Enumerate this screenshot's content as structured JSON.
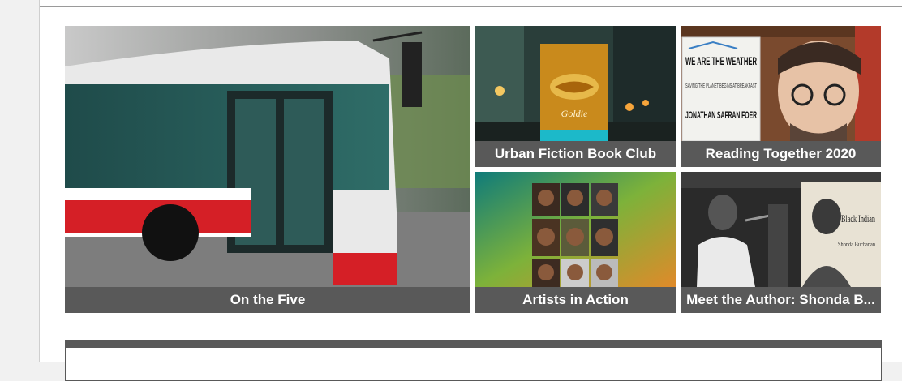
{
  "tiles": [
    {
      "caption": "On the Five"
    },
    {
      "caption": "Urban Fiction Book Club"
    },
    {
      "caption": "Reading Together 2020"
    },
    {
      "caption": "Artists in Action"
    },
    {
      "caption": "Meet the Author: Shonda B..."
    }
  ],
  "book_covers": {
    "urban_fiction_title": "Goldie",
    "weather_book_title": "WE ARE THE WEATHER",
    "weather_book_subtitle": "SAVING THE PLANET BEGINS AT BREAKFAST",
    "weather_book_author": "JONATHAN SAFRAN FOER",
    "black_indian_title": "Black Indian",
    "black_indian_author": "Shonda Buchanan"
  },
  "colors": {
    "caption_bg": "#595959",
    "caption_text": "#ffffff"
  }
}
